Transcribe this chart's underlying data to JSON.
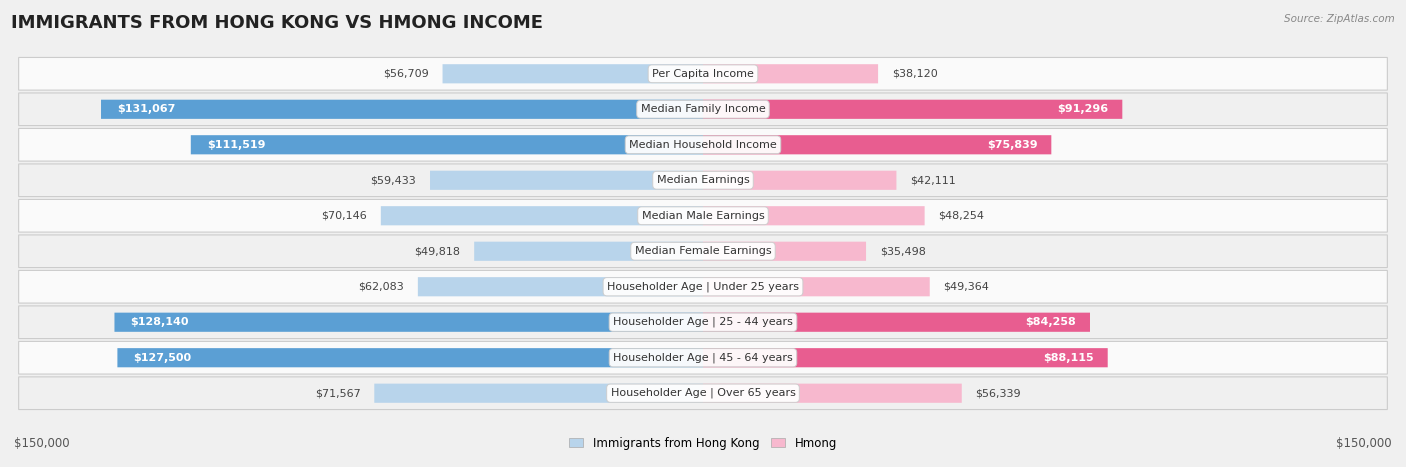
{
  "title": "IMMIGRANTS FROM HONG KONG VS HMONG INCOME",
  "source": "Source: ZipAtlas.com",
  "categories": [
    "Per Capita Income",
    "Median Family Income",
    "Median Household Income",
    "Median Earnings",
    "Median Male Earnings",
    "Median Female Earnings",
    "Householder Age | Under 25 years",
    "Householder Age | 25 - 44 years",
    "Householder Age | 45 - 64 years",
    "Householder Age | Over 65 years"
  ],
  "hk_values": [
    56709,
    131067,
    111519,
    59433,
    70146,
    49818,
    62083,
    128140,
    127500,
    71567
  ],
  "hmong_values": [
    38120,
    91296,
    75839,
    42111,
    48254,
    35498,
    49364,
    84258,
    88115,
    56339
  ],
  "hk_color_light": "#b8d4eb",
  "hk_color_dark": "#5b9fd4",
  "hmong_color_light": "#f7b8ce",
  "hmong_color_dark": "#e85d90",
  "hk_label": "Immigrants from Hong Kong",
  "hmong_label": "Hmong",
  "max_value": 150000,
  "xlabel_left": "$150,000",
  "xlabel_right": "$150,000",
  "bg_color": "#f0f0f0",
  "row_bg_even": "#fafafa",
  "row_bg_odd": "#f0f0f0",
  "title_fontsize": 13,
  "label_fontsize": 8,
  "value_fontsize": 8,
  "hk_dark_threshold": 100000,
  "hmong_dark_threshold": 75000
}
